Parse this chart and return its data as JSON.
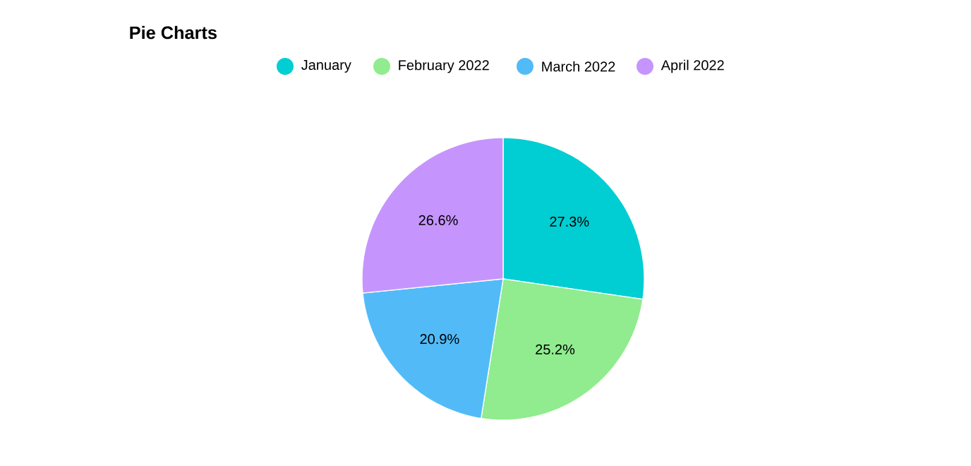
{
  "chart_data": {
    "type": "pie",
    "title": "Pie Charts",
    "categories": [
      "January",
      "February 2022",
      "March 2022",
      "April 2022"
    ],
    "values": [
      27.3,
      25.2,
      20.9,
      26.6
    ],
    "colors": [
      "#00ced3",
      "#90ec8e",
      "#52bbf7",
      "#c595fd"
    ],
    "value_labels": [
      "27.3%",
      "25.2%",
      "20.9%",
      "26.6%"
    ],
    "legend": "top"
  }
}
